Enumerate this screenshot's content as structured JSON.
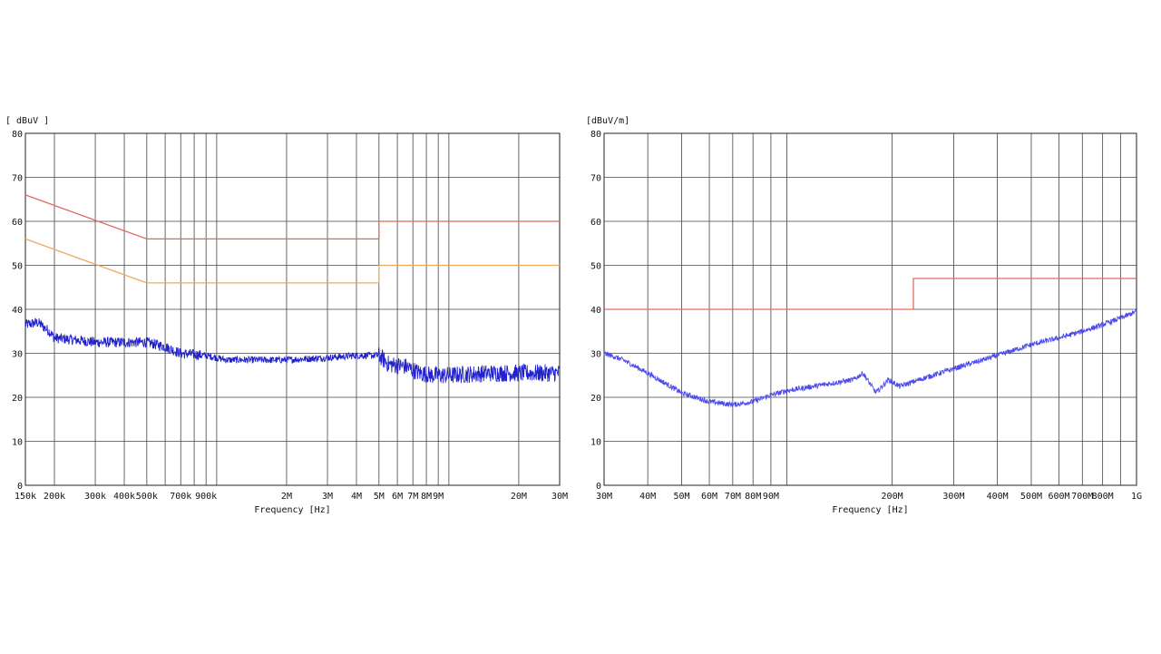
{
  "chart_data": [
    {
      "type": "line",
      "unit_label": "[ dBuV ]",
      "xlabel": "Frequency [Hz]",
      "x_scale": "log",
      "xlim": [
        150000,
        30000000
      ],
      "ylim": [
        0,
        80
      ],
      "grid": true,
      "y_ticks": [
        "0",
        "10",
        "20",
        "30",
        "40",
        "50",
        "60",
        "70",
        "80"
      ],
      "x_ticks": [
        {
          "value": 150000,
          "label": "150k"
        },
        {
          "value": 200000,
          "label": "200k"
        },
        {
          "value": 300000,
          "label": "300k"
        },
        {
          "value": 400000,
          "label": "400k"
        },
        {
          "value": 500000,
          "label": "500k"
        },
        {
          "value": 700000,
          "label": "700k"
        },
        {
          "value": 900000,
          "label": "900k"
        },
        {
          "value": 2000000,
          "label": "2M"
        },
        {
          "value": 3000000,
          "label": "3M"
        },
        {
          "value": 4000000,
          "label": "4M"
        },
        {
          "value": 5000000,
          "label": "5M"
        },
        {
          "value": 6000000,
          "label": "6M"
        },
        {
          "value": 7000000,
          "label": "7M"
        },
        {
          "value": 8000000,
          "label": "8M"
        },
        {
          "value": 9000000,
          "label": "9M"
        },
        {
          "value": 20000000,
          "label": "20M"
        },
        {
          "value": 30000000,
          "label": "30M"
        }
      ],
      "limit_lines": [
        {
          "color": "#e06a5a",
          "points": [
            [
              150000,
              66
            ],
            [
              500000,
              56
            ],
            [
              5000000,
              56
            ],
            [
              5000000,
              60
            ],
            [
              30000000,
              60
            ]
          ]
        },
        {
          "color": "#f0a860",
          "points": [
            [
              150000,
              56
            ],
            [
              500000,
              46
            ],
            [
              5000000,
              46
            ],
            [
              5000000,
              50
            ],
            [
              30000000,
              50
            ]
          ]
        }
      ],
      "series": [
        {
          "color": "#2222cc",
          "points": [
            [
              150000,
              36.5
            ],
            [
              170000,
              37
            ],
            [
              190000,
              35
            ],
            [
              200000,
              33.5
            ],
            [
              250000,
              33
            ],
            [
              300000,
              32.5
            ],
            [
              400000,
              32.5
            ],
            [
              500000,
              32.5
            ],
            [
              600000,
              31.5
            ],
            [
              700000,
              30
            ],
            [
              900000,
              29.5
            ],
            [
              1100000,
              28.5
            ],
            [
              1500000,
              28.5
            ],
            [
              2000000,
              28.5
            ],
            [
              3000000,
              29
            ],
            [
              4000000,
              29.5
            ],
            [
              5000000,
              29.5
            ],
            [
              5500000,
              27.5
            ],
            [
              6500000,
              27
            ],
            [
              7500000,
              25.5
            ],
            [
              8500000,
              25
            ],
            [
              10000000,
              25
            ],
            [
              15000000,
              25.5
            ],
            [
              20000000,
              25.5
            ],
            [
              30000000,
              25.5
            ]
          ],
          "noise": [
            1.2,
            0.8,
            2.0
          ]
        }
      ]
    },
    {
      "type": "line",
      "unit_label": "[dBuV/m]",
      "xlabel": "Frequency [Hz]",
      "x_scale": "log",
      "xlim": [
        30000000,
        1000000000
      ],
      "ylim": [
        0,
        80
      ],
      "grid": true,
      "y_ticks": [
        "0",
        "10",
        "20",
        "30",
        "40",
        "50",
        "60",
        "70",
        "80"
      ],
      "x_ticks": [
        {
          "value": 30000000,
          "label": "30M"
        },
        {
          "value": 40000000,
          "label": "40M"
        },
        {
          "value": 50000000,
          "label": "50M"
        },
        {
          "value": 60000000,
          "label": "60M"
        },
        {
          "value": 70000000,
          "label": "70M"
        },
        {
          "value": 80000000,
          "label": "80M"
        },
        {
          "value": 90000000,
          "label": "90M"
        },
        {
          "value": 200000000,
          "label": "200M"
        },
        {
          "value": 300000000,
          "label": "300M"
        },
        {
          "value": 400000000,
          "label": "400M"
        },
        {
          "value": 500000000,
          "label": "500M"
        },
        {
          "value": 600000000,
          "label": "600M"
        },
        {
          "value": 700000000,
          "label": "700M"
        },
        {
          "value": 800000000,
          "label": "800M"
        },
        {
          "value": 1000000000,
          "label": "1G"
        }
      ],
      "limit_lines": [
        {
          "color": "#e06a5a",
          "points": [
            [
              30000000,
              40
            ],
            [
              230000000,
              40
            ],
            [
              230000000,
              47
            ],
            [
              1000000000,
              47
            ]
          ]
        }
      ],
      "series": [
        {
          "color": "#4a4aee",
          "points": [
            [
              30000000,
              30
            ],
            [
              34000000,
              28.5
            ],
            [
              40000000,
              25.5
            ],
            [
              50000000,
              21
            ],
            [
              60000000,
              19
            ],
            [
              70000000,
              18.3
            ],
            [
              80000000,
              19
            ],
            [
              90000000,
              20.5
            ],
            [
              100000000,
              21.5
            ],
            [
              130000000,
              23
            ],
            [
              155000000,
              24
            ],
            [
              165000000,
              25.5
            ],
            [
              180000000,
              21
            ],
            [
              195000000,
              24
            ],
            [
              210000000,
              22.5
            ],
            [
              250000000,
              24.5
            ],
            [
              300000000,
              26.5
            ],
            [
              400000000,
              29.5
            ],
            [
              500000000,
              32
            ],
            [
              600000000,
              33.5
            ],
            [
              700000000,
              35
            ],
            [
              800000000,
              36.5
            ],
            [
              900000000,
              38
            ],
            [
              1000000000,
              39.5
            ]
          ],
          "noise": [
            0.6,
            0.6,
            0.6
          ]
        }
      ]
    }
  ]
}
